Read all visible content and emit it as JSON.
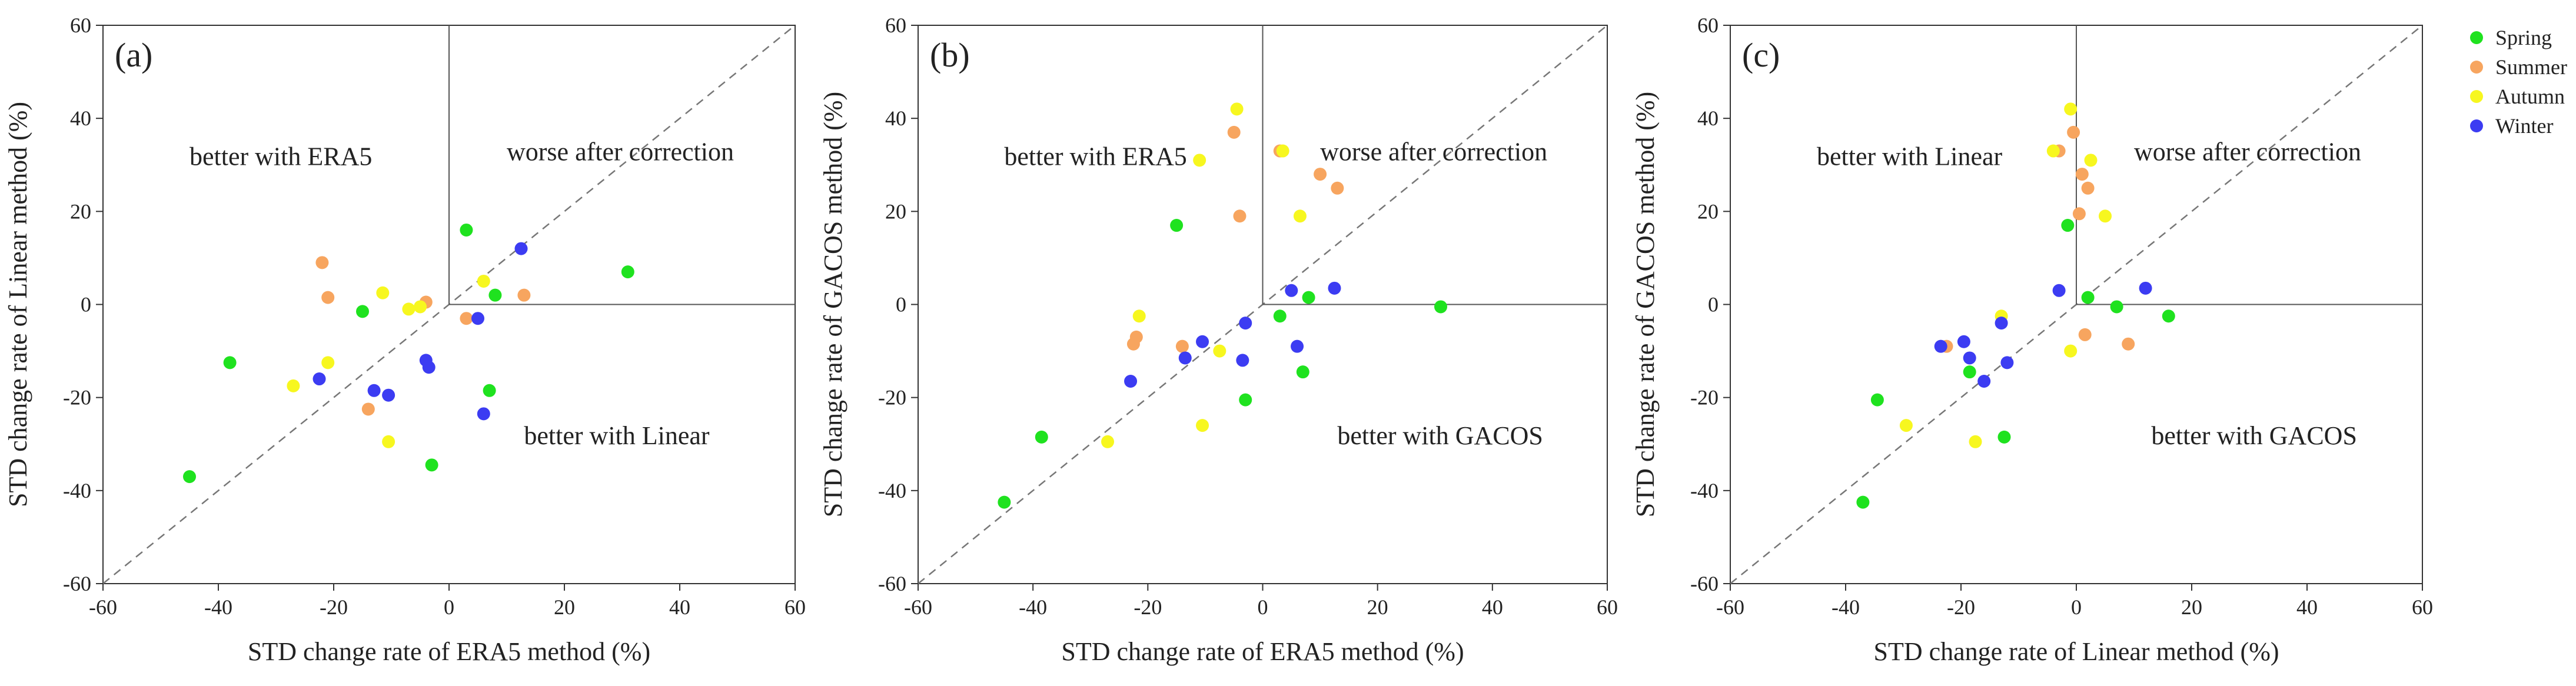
{
  "chart_data": [
    {
      "type": "scatter",
      "panel_label": "(a)",
      "xlabel": "STD change rate of ERA5 method (%)",
      "ylabel": "STD change rate of Linear method (%)",
      "xlim": [
        -60,
        60
      ],
      "ylim": [
        -60,
        60
      ],
      "xticks": [
        "-60",
        "-40",
        "-20",
        "0",
        "20",
        "40",
        "60"
      ],
      "yticks": [
        "-60",
        "-40",
        "-20",
        "0",
        "20",
        "40",
        "60"
      ],
      "region_labels": {
        "top_left": "better with ERA5",
        "top_right": "worse after correction",
        "bottom_right": "better with Linear"
      },
      "series": [
        {
          "name": "Spring",
          "points": [
            [
              -45,
              -37
            ],
            [
              -38,
              -12.5
            ],
            [
              -15,
              -1.5
            ],
            [
              -3,
              -34.5
            ],
            [
              3,
              16
            ],
            [
              7,
              -18.5
            ],
            [
              8,
              2
            ],
            [
              31,
              7
            ]
          ]
        },
        {
          "name": "Summer",
          "points": [
            [
              -22,
              9
            ],
            [
              -21,
              1.5
            ],
            [
              -14,
              -22.5
            ],
            [
              -4,
              0.5
            ],
            [
              3,
              -3
            ],
            [
              13,
              2
            ]
          ]
        },
        {
          "name": "Autumn",
          "points": [
            [
              -27,
              -17.5
            ],
            [
              -21,
              -12.5
            ],
            [
              -11.5,
              2.5
            ],
            [
              -10.5,
              -29.5
            ],
            [
              -7,
              -1
            ],
            [
              -5,
              -0.5
            ],
            [
              6,
              5
            ]
          ]
        },
        {
          "name": "Winter",
          "points": [
            [
              -22.5,
              -16
            ],
            [
              -13,
              -18.5
            ],
            [
              -10.5,
              -19.5
            ],
            [
              -4,
              -12
            ],
            [
              -3.5,
              -13.5
            ],
            [
              5,
              -3
            ],
            [
              6,
              -23.5
            ],
            [
              12.5,
              12
            ]
          ]
        }
      ]
    },
    {
      "type": "scatter",
      "panel_label": "(b)",
      "xlabel": "STD change rate of ERA5 method (%)",
      "ylabel": "STD change rate of GACOS method (%)",
      "xlim": [
        -60,
        60
      ],
      "ylim": [
        -60,
        60
      ],
      "xticks": [
        "-60",
        "-40",
        "-20",
        "0",
        "20",
        "40",
        "60"
      ],
      "yticks": [
        "-60",
        "-40",
        "-20",
        "0",
        "20",
        "40",
        "60"
      ],
      "region_labels": {
        "top_left": "better with ERA5",
        "top_right": "worse after correction",
        "bottom_right": "better with GACOS"
      },
      "series": [
        {
          "name": "Spring",
          "points": [
            [
              -45,
              -42.5
            ],
            [
              -38.5,
              -28.5
            ],
            [
              -15,
              17
            ],
            [
              -3,
              -20.5
            ],
            [
              3,
              -2.5
            ],
            [
              7,
              -14.5
            ],
            [
              8,
              1.5
            ],
            [
              31,
              -0.5
            ]
          ]
        },
        {
          "name": "Summer",
          "points": [
            [
              -22.5,
              -8.5
            ],
            [
              -22,
              -7
            ],
            [
              -14,
              -9
            ],
            [
              -5,
              37
            ],
            [
              -4,
              19
            ],
            [
              3,
              33
            ],
            [
              10,
              28
            ],
            [
              13,
              25
            ]
          ]
        },
        {
          "name": "Autumn",
          "points": [
            [
              -27,
              -29.5
            ],
            [
              -21.5,
              -2.5
            ],
            [
              -11,
              31
            ],
            [
              -10.5,
              -26
            ],
            [
              -7.5,
              -10
            ],
            [
              -4.5,
              42
            ],
            [
              3.5,
              33
            ],
            [
              6.5,
              19
            ]
          ]
        },
        {
          "name": "Winter",
          "points": [
            [
              -23,
              -16.5
            ],
            [
              -13.5,
              -11.5
            ],
            [
              -10.5,
              -8
            ],
            [
              -3.5,
              -12
            ],
            [
              -3,
              -4
            ],
            [
              5,
              3
            ],
            [
              6,
              -9
            ],
            [
              12.5,
              3.5
            ]
          ]
        }
      ]
    },
    {
      "type": "scatter",
      "panel_label": "(c)",
      "xlabel": "STD change rate of Linear method (%)",
      "ylabel": "STD change rate of GACOS method (%)",
      "xlim": [
        -60,
        60
      ],
      "ylim": [
        -60,
        60
      ],
      "xticks": [
        "-60",
        "-40",
        "-20",
        "0",
        "20",
        "40",
        "60"
      ],
      "yticks": [
        "-60",
        "-40",
        "-20",
        "0",
        "20",
        "40",
        "60"
      ],
      "region_labels": {
        "top_left": "better with Linear",
        "top_right": "worse after correction",
        "bottom_right": "better with GACOS"
      },
      "series": [
        {
          "name": "Spring",
          "points": [
            [
              -37,
              -42.5
            ],
            [
              -34.5,
              -20.5
            ],
            [
              -18.5,
              -14.5
            ],
            [
              -12.5,
              -28.5
            ],
            [
              -1.5,
              17
            ],
            [
              2,
              1.5
            ],
            [
              7,
              -0.5
            ],
            [
              16,
              -2.5
            ]
          ]
        },
        {
          "name": "Summer",
          "points": [
            [
              -22.5,
              -9
            ],
            [
              -3,
              33
            ],
            [
              -0.5,
              37
            ],
            [
              0.5,
              19.5
            ],
            [
              1,
              28
            ],
            [
              1.5,
              -6.5
            ],
            [
              2,
              25
            ],
            [
              9,
              -8.5
            ]
          ]
        },
        {
          "name": "Autumn",
          "points": [
            [
              -29.5,
              -26
            ],
            [
              -17.5,
              -29.5
            ],
            [
              -13,
              -2.5
            ],
            [
              -4,
              33
            ],
            [
              -1,
              -10
            ],
            [
              -1,
              42
            ],
            [
              2.5,
              31
            ],
            [
              5,
              19
            ]
          ]
        },
        {
          "name": "Winter",
          "points": [
            [
              -23.5,
              -9
            ],
            [
              -19.5,
              -8
            ],
            [
              -18.5,
              -11.5
            ],
            [
              -16,
              -16.5
            ],
            [
              -13,
              -4
            ],
            [
              -12,
              -12.5
            ],
            [
              -3,
              3
            ],
            [
              12,
              3.5
            ]
          ]
        }
      ]
    }
  ],
  "legend": {
    "items": [
      {
        "label": "Spring",
        "color": "#1fe21f"
      },
      {
        "label": "Summer",
        "color": "#f7a55f"
      },
      {
        "label": "Autumn",
        "color": "#f7f71f"
      },
      {
        "label": "Winter",
        "color": "#3c3cf2"
      }
    ]
  }
}
